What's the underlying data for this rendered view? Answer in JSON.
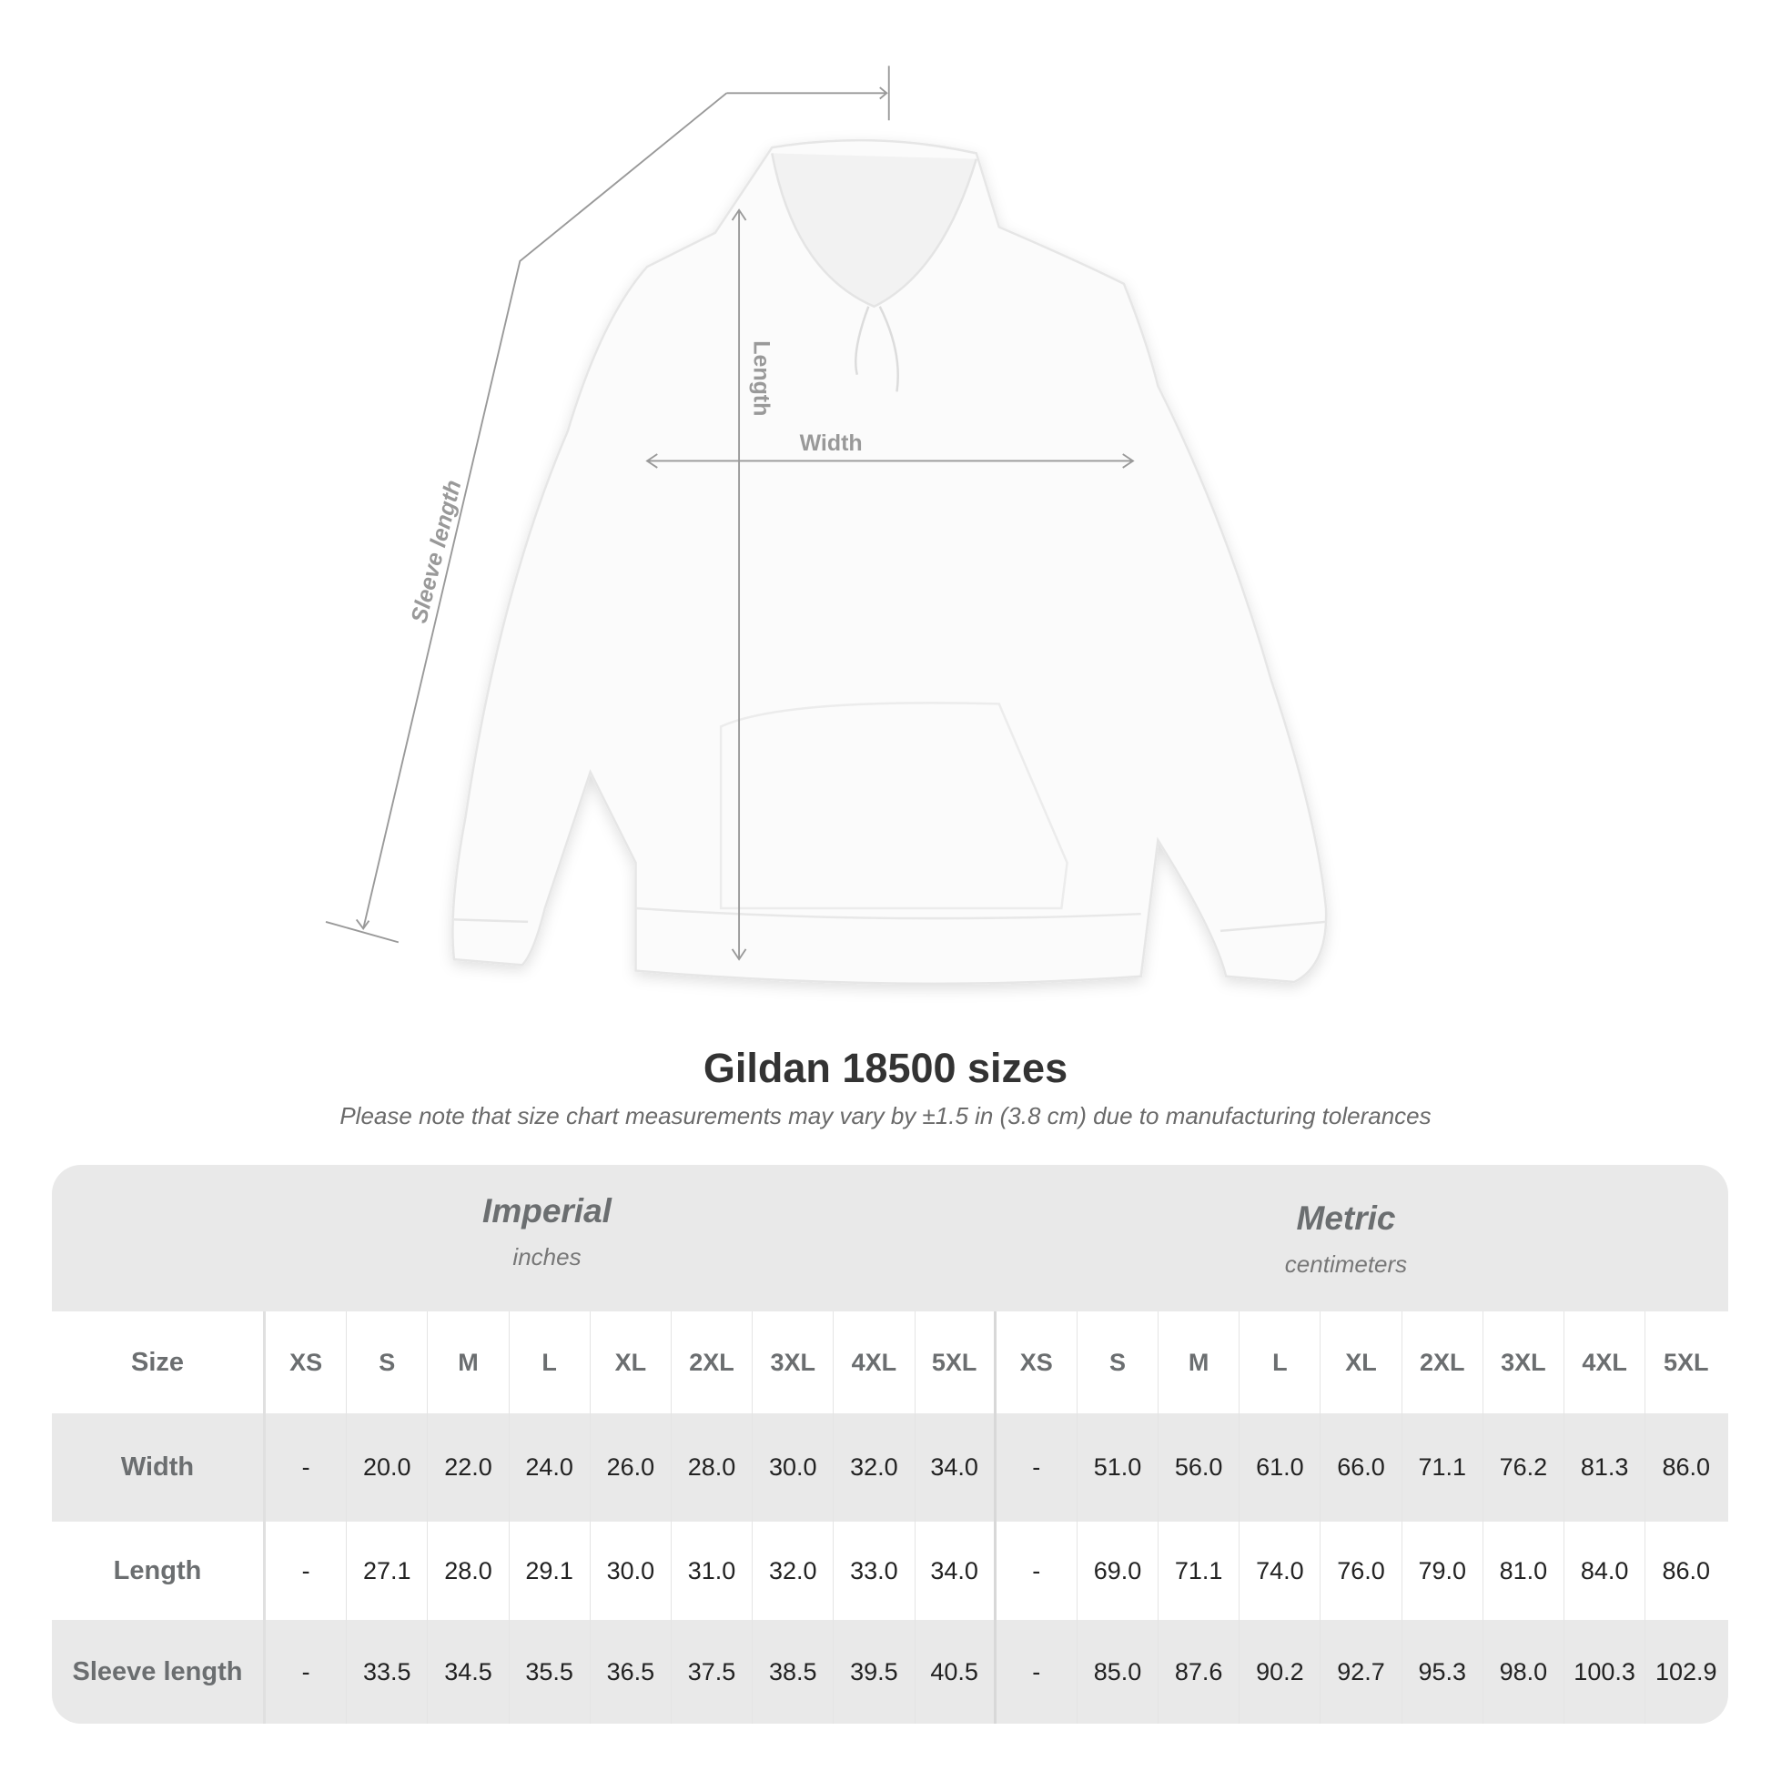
{
  "diagram": {
    "length_label": "Length",
    "width_label": "Width",
    "sleeve_label": "Sleeve length"
  },
  "title": "Gildan 18500 sizes",
  "note": "Please note that size chart measurements may vary by ±1.5 in (3.8 cm) due to manufacturing tolerances",
  "table": {
    "imperial": {
      "name": "Imperial",
      "unit": "inches"
    },
    "metric": {
      "name": "Metric",
      "unit": "centimeters"
    },
    "size_label": "Size",
    "sizes": [
      "XS",
      "S",
      "M",
      "L",
      "XL",
      "2XL",
      "3XL",
      "4XL",
      "5XL"
    ],
    "rows": [
      {
        "label": "Width",
        "imperial": [
          "-",
          "20.0",
          "22.0",
          "24.0",
          "26.0",
          "28.0",
          "30.0",
          "32.0",
          "34.0"
        ],
        "metric": [
          "-",
          "51.0",
          "56.0",
          "61.0",
          "66.0",
          "71.1",
          "76.2",
          "81.3",
          "86.0"
        ]
      },
      {
        "label": "Length",
        "imperial": [
          "-",
          "27.1",
          "28.0",
          "29.1",
          "30.0",
          "31.0",
          "32.0",
          "33.0",
          "34.0"
        ],
        "metric": [
          "-",
          "69.0",
          "71.1",
          "74.0",
          "76.0",
          "79.0",
          "81.0",
          "84.0",
          "86.0"
        ]
      },
      {
        "label": "Sleeve length",
        "imperial": [
          "-",
          "33.5",
          "34.5",
          "35.5",
          "36.5",
          "37.5",
          "38.5",
          "39.5",
          "40.5"
        ],
        "metric": [
          "-",
          "85.0",
          "87.6",
          "90.2",
          "92.7",
          "95.3",
          "98.0",
          "100.3",
          "102.9"
        ]
      }
    ]
  }
}
